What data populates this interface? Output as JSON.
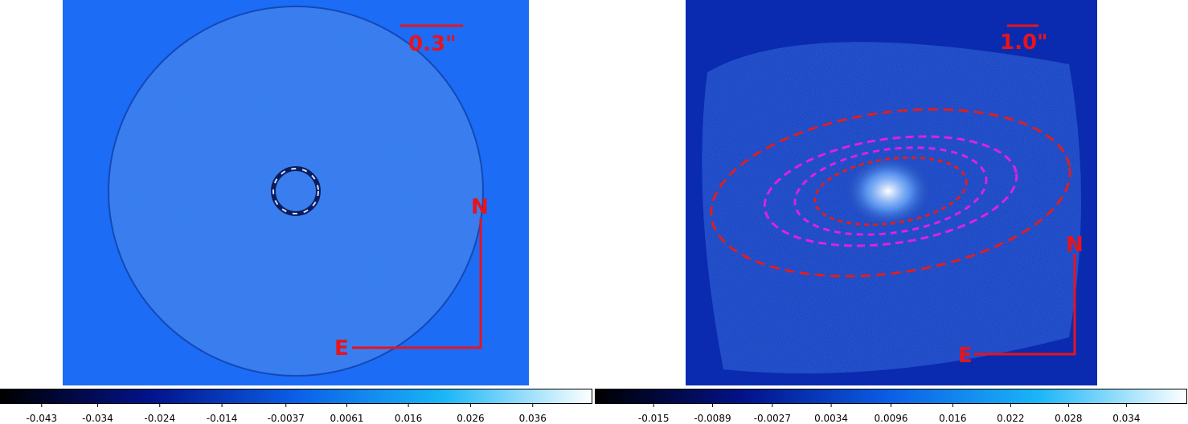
{
  "panels": [
    {
      "scale_label": "0.3\"",
      "north": "N",
      "east": "E",
      "colorbar": {
        "lim": [
          -0.0497,
          0.0456
        ],
        "ticks": [
          -0.043,
          -0.034,
          -0.024,
          -0.014,
          -0.0037,
          0.0061,
          0.016,
          0.026,
          0.036
        ]
      }
    },
    {
      "scale_label": "1.0\"",
      "north": "N",
      "east": "E",
      "colorbar": {
        "lim": [
          -0.0211,
          0.0403
        ],
        "ticks": [
          -0.015,
          -0.0089,
          -0.0027,
          0.0034,
          0.0096,
          0.016,
          0.022,
          0.028,
          0.034
        ]
      }
    }
  ]
}
